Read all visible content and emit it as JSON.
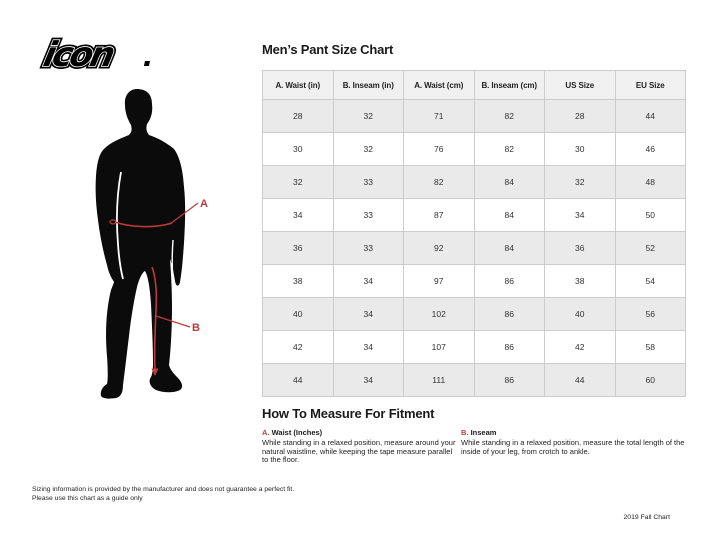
{
  "logo": {
    "text": "icon",
    "dot": "."
  },
  "figure": {
    "label_a": "A",
    "label_b": "B"
  },
  "size_chart": {
    "title": "Men’s Pant Size Chart",
    "columns": [
      "A. Waist (in)",
      "B. Inseam (in)",
      "A. Waist (cm)",
      "B. Inseam (cm)",
      "US Size",
      "EU Size"
    ],
    "rows": [
      [
        "28",
        "32",
        "71",
        "82",
        "28",
        "44"
      ],
      [
        "30",
        "32",
        "76",
        "82",
        "30",
        "46"
      ],
      [
        "32",
        "33",
        "82",
        "84",
        "32",
        "48"
      ],
      [
        "34",
        "33",
        "87",
        "84",
        "34",
        "50"
      ],
      [
        "36",
        "33",
        "92",
        "84",
        "36",
        "52"
      ],
      [
        "38",
        "34",
        "97",
        "86",
        "38",
        "54"
      ],
      [
        "40",
        "34",
        "102",
        "86",
        "40",
        "56"
      ],
      [
        "42",
        "34",
        "107",
        "86",
        "42",
        "58"
      ],
      [
        "44",
        "34",
        "111",
        "86",
        "44",
        "60"
      ]
    ]
  },
  "how_to_measure": {
    "title": "How To Measure For Fitment",
    "items": [
      {
        "prefix": "A.",
        "label": "Waist (Inches)",
        "text": "While standing in a relaxed position, measure around your natural waistline, while keeping the tape measure parallel to the floor."
      },
      {
        "prefix": "B.",
        "label": "Inseam",
        "text": "While standing in a relaxed position, measure the total length of the inside of your leg, from crotch to ankle."
      }
    ]
  },
  "disclaimer": {
    "lines": [
      "Sizing information is provided by the manufacturer and does not guarantee a perfect fit.",
      "Please use this chart as a guide only"
    ]
  },
  "footer": {
    "label": "2019 Fall Chart"
  },
  "colors": {
    "accent_red": "#bf3a3a",
    "row_gray": "#eaeaea",
    "header_gray": "#f0f0f0",
    "table_border": "#cccccc",
    "silhouette": "#0b0b0b"
  }
}
